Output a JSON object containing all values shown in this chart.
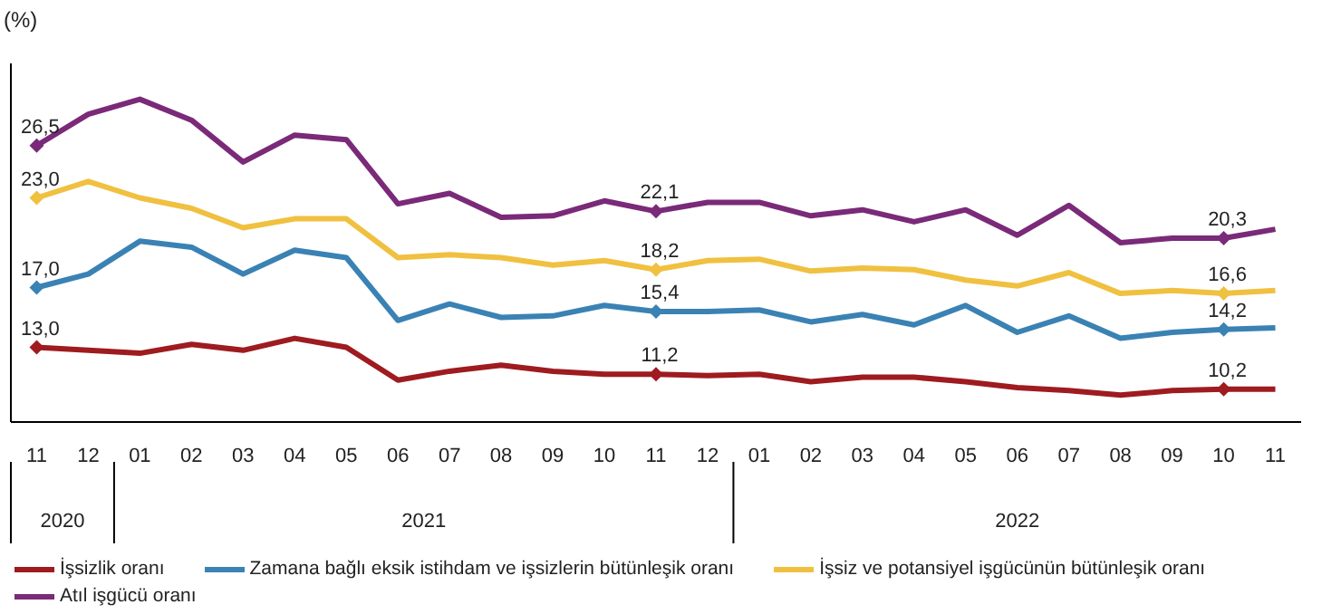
{
  "chart_data": {
    "type": "line",
    "ylabel": "(%)",
    "categories": [
      "11",
      "12",
      "01",
      "02",
      "03",
      "04",
      "05",
      "06",
      "07",
      "08",
      "09",
      "10",
      "11",
      "12",
      "01",
      "02",
      "03",
      "04",
      "05",
      "06",
      "07",
      "08",
      "09",
      "10",
      "11"
    ],
    "annotations": [
      "2020",
      "2021",
      "2022"
    ],
    "ylim": [
      8,
      32
    ],
    "tick_labels": "x",
    "grid": false,
    "legend": "bottom",
    "line_style": "solid",
    "series": [
      {
        "name": "İşsizlik oranı",
        "color": "#9e1b1f",
        "values": [
          13.0,
          12.8,
          12.6,
          13.2,
          12.8,
          13.6,
          13.0,
          10.8,
          11.4,
          11.8,
          11.4,
          11.2,
          11.2,
          11.1,
          11.2,
          10.7,
          11.0,
          11.0,
          10.7,
          10.3,
          10.1,
          9.8,
          10.1,
          10.2,
          10.2
        ],
        "value_labels": [
          "13,0",
          null,
          null,
          null,
          null,
          null,
          null,
          null,
          null,
          null,
          null,
          null,
          "11,2",
          null,
          null,
          null,
          null,
          null,
          null,
          null,
          null,
          null,
          null,
          "10,2",
          null
        ]
      },
      {
        "name": "Zamana bağlı eksik istihdam ve işsizlerin bütünleşik oranı",
        "color": "#3a82b4",
        "values": [
          17.0,
          17.9,
          20.1,
          19.7,
          17.9,
          19.5,
          19.0,
          14.8,
          15.9,
          15.0,
          15.1,
          15.8,
          15.4,
          15.4,
          15.5,
          14.7,
          15.2,
          14.5,
          15.8,
          14.0,
          15.1,
          13.6,
          14.0,
          14.2,
          14.3
        ],
        "value_labels": [
          "17,0",
          null,
          null,
          null,
          null,
          null,
          null,
          null,
          null,
          null,
          null,
          null,
          "15,4",
          null,
          null,
          null,
          null,
          null,
          null,
          null,
          null,
          null,
          null,
          "14,2",
          null
        ]
      },
      {
        "name": "İşsiz ve potansiyel işgücünün bütünleşik oranı",
        "color": "#f0c040",
        "values": [
          23.0,
          24.1,
          23.0,
          22.3,
          21.0,
          21.6,
          21.6,
          19.0,
          19.2,
          19.0,
          18.5,
          18.8,
          18.2,
          18.8,
          18.9,
          18.1,
          18.3,
          18.2,
          17.5,
          17.1,
          18.0,
          16.6,
          16.8,
          16.6,
          16.8
        ],
        "value_labels": [
          "23,0",
          null,
          null,
          null,
          null,
          null,
          null,
          null,
          null,
          null,
          null,
          null,
          "18,2",
          null,
          null,
          null,
          null,
          null,
          null,
          null,
          null,
          null,
          null,
          "16,6",
          null
        ]
      },
      {
        "name": "Atıl işgücü oranı",
        "color": "#7a2a78",
        "values": [
          26.5,
          28.6,
          29.6,
          28.2,
          25.4,
          27.2,
          26.9,
          22.6,
          23.3,
          21.7,
          21.8,
          22.8,
          22.1,
          22.7,
          22.7,
          21.8,
          22.2,
          21.4,
          22.2,
          20.5,
          22.5,
          20.0,
          20.3,
          20.3,
          20.9
        ],
        "value_labels": [
          "26,5",
          null,
          null,
          null,
          null,
          null,
          null,
          null,
          null,
          null,
          null,
          null,
          "22,1",
          null,
          null,
          null,
          null,
          null,
          null,
          null,
          null,
          null,
          null,
          "20,3",
          null
        ]
      }
    ]
  }
}
